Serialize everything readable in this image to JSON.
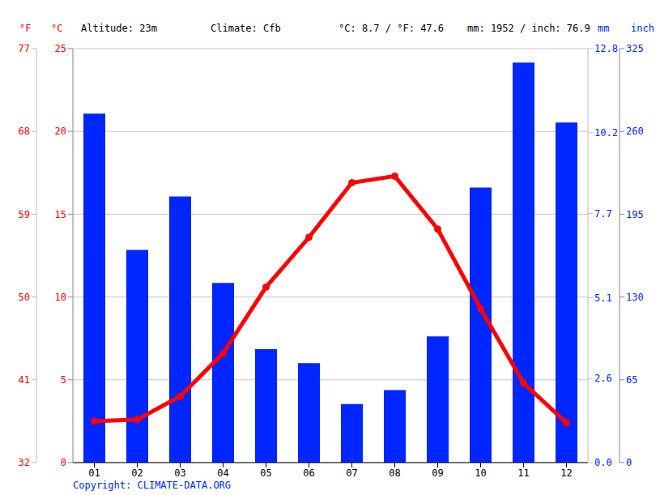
{
  "chart_data": {
    "type": "bar",
    "categories": [
      "01",
      "02",
      "03",
      "04",
      "05",
      "06",
      "07",
      "08",
      "09",
      "10",
      "11",
      "12"
    ],
    "series": [
      {
        "type": "bar",
        "axis": "y2",
        "color": "#0026ff",
        "values": [
          274,
          167,
          209,
          141,
          89,
          78,
          46,
          57,
          99,
          216,
          314,
          267
        ]
      },
      {
        "type": "line",
        "color": "#ff0000",
        "marker": "circle",
        "values": [
          2.5,
          2.6,
          4.0,
          6.6,
          10.6,
          13.6,
          16.9,
          17.3,
          14.1,
          9.3,
          4.8,
          2.4
        ]
      }
    ],
    "ylabel": "°C",
    "ylim": [
      0,
      25
    ],
    "yticks": [
      0,
      5,
      10,
      15,
      20,
      25
    ],
    "y2label": "mm",
    "y2lim": [
      0,
      325
    ],
    "y2ticks": [
      0,
      65,
      130,
      195,
      260,
      325
    ],
    "y3label": "°F",
    "y3lim": [
      32,
      77
    ],
    "y3ticks": [
      32,
      41,
      50,
      59,
      68,
      77
    ],
    "y4label": "inch",
    "y4lim": [
      0,
      12.8
    ],
    "y4ticks": [
      {
        "value": 0,
        "label": "0.0"
      },
      2.6,
      5.1,
      7.7,
      10.2,
      12.8
    ],
    "grid": true,
    "annotations": [
      "Altitude: 23m",
      "Climate: Cfb",
      "°C: 8.7 / °F: 47.6",
      "mm: 1952 / inch: 76.9",
      "Copyright: CLIMATE-DATA.ORG"
    ]
  }
}
